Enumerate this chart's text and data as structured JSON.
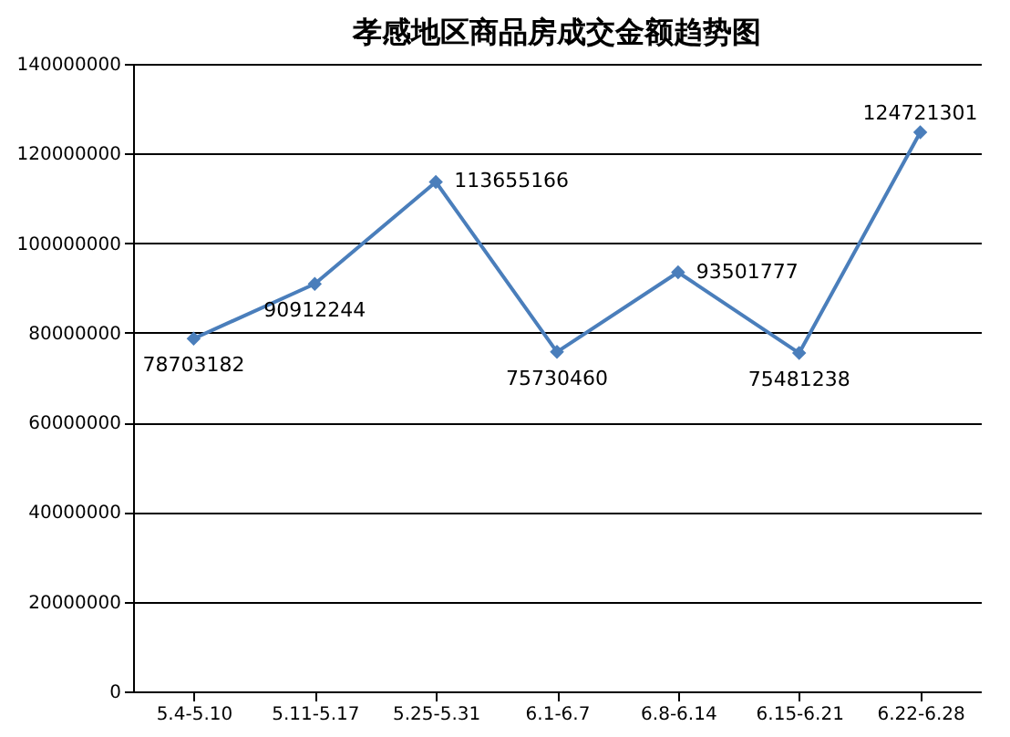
{
  "chart_data": {
    "type": "line",
    "title": "孝感地区商品房成交金额趋势图",
    "categories": [
      "5.4-5.10",
      "5.11-5.17",
      "5.25-5.31",
      "6.1-6.7",
      "6.8-6.14",
      "6.15-6.21",
      "6.22-6.28"
    ],
    "series": [
      {
        "color": "#4a7ebb",
        "values": [
          78703182,
          90912244,
          113655166,
          75730460,
          93501777,
          75481238,
          124721301
        ]
      }
    ],
    "ylim": [
      0,
      140000000
    ],
    "yticks": [
      0,
      20000000,
      40000000,
      60000000,
      80000000,
      100000000,
      120000000,
      140000000
    ],
    "grid": "y",
    "marker": "diamond",
    "line_style": "solid",
    "data_labels": true
  }
}
